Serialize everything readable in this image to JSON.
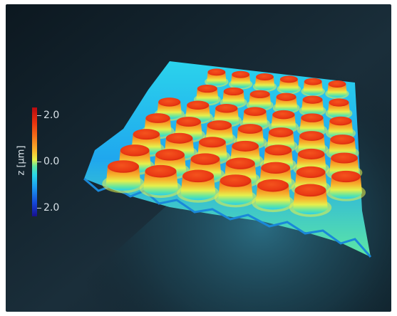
{
  "colorbar": {
    "axis_label": "z [µm]",
    "ticks": [
      {
        "label": "2.0",
        "value": 2.0
      },
      {
        "label": "0.0",
        "value": 0.0
      },
      {
        "label": "2.0",
        "value": -2.0
      }
    ],
    "range": [
      -2.0,
      2.0
    ],
    "colormap": [
      "#18108f",
      "#1545d8",
      "#1b98f0",
      "#29d7e9",
      "#5fe6a2",
      "#e8f24a",
      "#f9b92e",
      "#f46c18",
      "#e8330f",
      "#b80a10"
    ]
  },
  "surface": {
    "grid_rows": 7,
    "grid_cols": 7,
    "pillar_color": "#f0461a",
    "valley_color": "#29c8ee"
  },
  "colors": {
    "background_dark": "#14222c",
    "background_glow": "#1f5a70"
  }
}
